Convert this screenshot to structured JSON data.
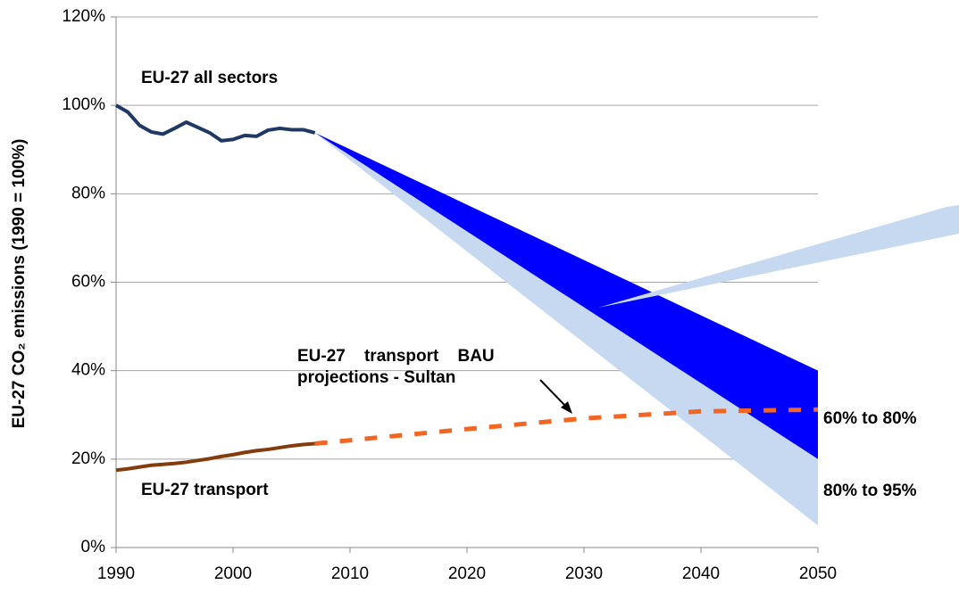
{
  "chart_data": {
    "type": "line",
    "ylabel": "EU-27 CO₂ emissions (1990 = 100%)",
    "xlim": [
      1990,
      2050
    ],
    "ylim": [
      0,
      120
    ],
    "xticks": [
      1990,
      2000,
      2010,
      2020,
      2030,
      2040,
      2050
    ],
    "yticks": [
      {
        "value": 0,
        "label": "0%"
      },
      {
        "value": 20,
        "label": "20%"
      },
      {
        "value": 40,
        "label": "40%"
      },
      {
        "value": 60,
        "label": "60%"
      },
      {
        "value": 80,
        "label": "80%"
      },
      {
        "value": 100,
        "label": "100%"
      },
      {
        "value": 120,
        "label": "120%"
      }
    ],
    "grid": true,
    "bands": [
      {
        "name": "60% to 80%",
        "color": "#0000ff",
        "x": [
          2007,
          2050
        ],
        "upper": [
          93.8,
          40
        ],
        "lower": [
          93.8,
          20
        ]
      },
      {
        "name": "80% to 95%",
        "color": "#c6d9f1",
        "x": [
          2007,
          2050
        ],
        "upper": [
          93.8,
          20
        ],
        "lower": [
          93.8,
          5
        ]
      }
    ],
    "series": [
      {
        "name": "EU-27 all sectors",
        "color": "#1f3864",
        "x": [
          1990,
          1991,
          1992,
          1993,
          1994,
          1995,
          1996,
          1997,
          1998,
          1999,
          2000,
          2001,
          2002,
          2003,
          2004,
          2005,
          2006,
          2007
        ],
        "values": [
          100,
          98.5,
          95.5,
          94,
          93.5,
          94.8,
          96.2,
          95,
          93.8,
          92,
          92.3,
          93.2,
          93,
          94.4,
          94.8,
          94.5,
          94.5,
          93.8
        ]
      },
      {
        "name": "EU-27 transport",
        "color": "#843c0c",
        "x": [
          1990,
          1991,
          1992,
          1993,
          1994,
          1995,
          1996,
          1997,
          1998,
          1999,
          2000,
          2001,
          2002,
          2003,
          2004,
          2005,
          2006,
          2007
        ],
        "values": [
          17.5,
          17.8,
          18.2,
          18.6,
          18.8,
          19,
          19.3,
          19.7,
          20.1,
          20.6,
          21,
          21.5,
          21.9,
          22.2,
          22.6,
          23,
          23.3,
          23.5
        ]
      },
      {
        "name": "EU-27    transport    BAU\nprojections - Sultan",
        "color": "#f26522",
        "dashed": true,
        "x": [
          2007,
          2020,
          2030,
          2040,
          2050
        ],
        "values": [
          23.5,
          26.8,
          29.2,
          30.8,
          31.2
        ]
      }
    ]
  }
}
